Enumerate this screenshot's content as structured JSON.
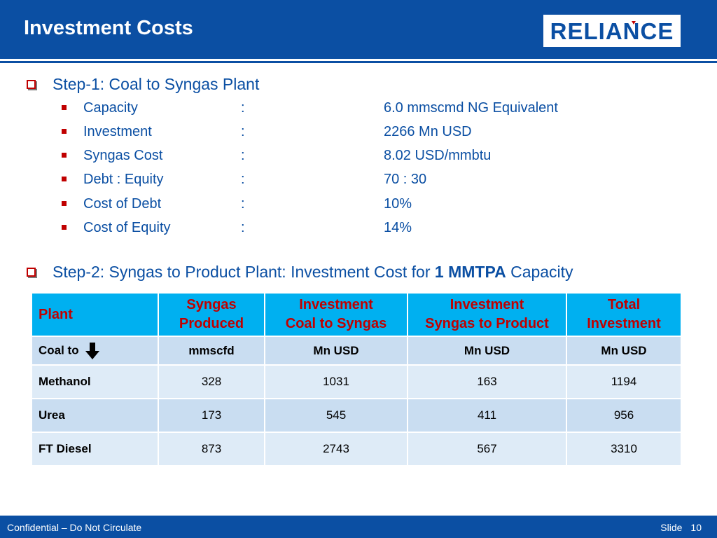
{
  "header": {
    "title": "Investment Costs",
    "logo_text": "RELIANCE"
  },
  "step1": {
    "heading": "Step-1: Coal to Syngas Plant",
    "rows": [
      {
        "label": "Capacity",
        "sep": ":",
        "value": "6.0 mmscmd NG Equivalent"
      },
      {
        "label": "Investment",
        "sep": ":",
        "value": "2266 Mn USD"
      },
      {
        "label": "Syngas Cost",
        "sep": ":",
        "value": "8.02 USD/mmbtu"
      },
      {
        "label": "Debt : Equity",
        "sep": ":",
        "value": "70 : 30"
      },
      {
        "label": "Cost of Debt",
        "sep": ":",
        "value": "10%"
      },
      {
        "label": "Cost of Equity",
        "sep": ":",
        "value": "14%"
      }
    ]
  },
  "step2": {
    "heading_pre": "Step-2: Syngas to Product Plant: Investment Cost for ",
    "heading_bold": "1 MMTPA",
    "heading_post": " Capacity"
  },
  "table": {
    "headers": [
      {
        "line1": "Plant",
        "line2": ""
      },
      {
        "line1": "Syngas",
        "line2": "Produced"
      },
      {
        "line1": "Investment",
        "line2": "Coal to Syngas"
      },
      {
        "line1": "Investment",
        "line2": "Syngas to Product"
      },
      {
        "line1": "Total",
        "line2": "Investment"
      }
    ],
    "units": [
      "Coal to",
      "mmscfd",
      "Mn USD",
      "Mn USD",
      "Mn USD"
    ],
    "rows": [
      [
        "Methanol",
        "328",
        "1031",
        "163",
        "1194"
      ],
      [
        "Urea",
        "173",
        "545",
        "411",
        "956"
      ],
      [
        "FT Diesel",
        "873",
        "2743",
        "567",
        "3310"
      ]
    ]
  },
  "footer": {
    "left": "Confidential – Do Not Circulate",
    "slide_label": "Slide",
    "slide_number": "10"
  },
  "colors": {
    "brand_blue": "#0b4fa3",
    "header_cyan": "#00b0f0",
    "accent_red": "#c00000"
  }
}
